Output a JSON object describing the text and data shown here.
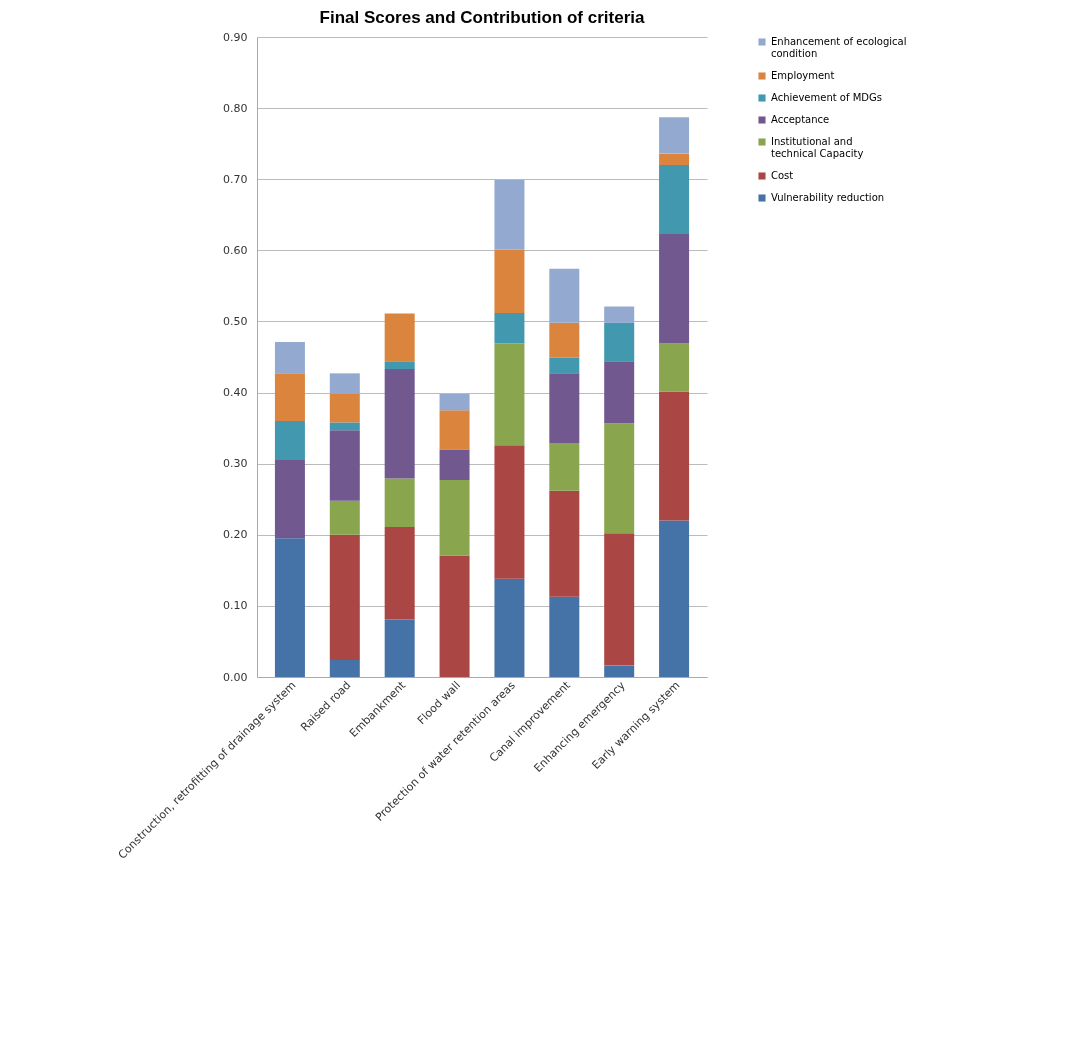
{
  "chart_data": {
    "type": "bar",
    "title": "Final Scores and Contribution of criteria",
    "stacked": true,
    "categories": [
      "Construction, retrofitting of drainage system",
      "Raised road",
      "Embankment",
      "Flood wall",
      "Protection of water retention areas",
      "Canal improvement",
      "Enhancing emergency",
      "Early warning system"
    ],
    "series": [
      {
        "name": "Vulnerability reduction",
        "color": "#4572a7",
        "values": [
          0.195,
          0.024,
          0.081,
          0,
          0.138,
          0.113,
          0.016,
          0.22
        ]
      },
      {
        "name": "Cost",
        "color": "#aa4643",
        "values": [
          0,
          0.176,
          0.13,
          0.171,
          0.188,
          0.149,
          0.186,
          0.181
        ]
      },
      {
        "name": "Institutional and technical Capacity",
        "color": "#89a54e",
        "values": [
          0,
          0.048,
          0.068,
          0.106,
          0.143,
          0.067,
          0.155,
          0.068
        ]
      },
      {
        "name": "Acceptance",
        "color": "#71588f",
        "values": [
          0.11,
          0.099,
          0.154,
          0.043,
          0,
          0.098,
          0.087,
          0.154
        ]
      },
      {
        "name": "Achievement of MDGs",
        "color": "#4198af",
        "values": [
          0.055,
          0.011,
          0.011,
          0,
          0.043,
          0.022,
          0.054,
          0.097
        ]
      },
      {
        "name": "Employment",
        "color": "#db843d",
        "values": [
          0.067,
          0.04,
          0.067,
          0.055,
          0.089,
          0.049,
          0,
          0.016
        ]
      },
      {
        "name": "Enhancement of ecological condition",
        "color": "#93a9cf",
        "values": [
          0.044,
          0.029,
          0,
          0.023,
          0.098,
          0.076,
          0.023,
          0.051
        ]
      }
    ],
    "ylim": [
      0,
      0.9
    ],
    "yticks": [
      {
        "value": 0,
        "label": "0.00"
      },
      {
        "value": 0.1,
        "label": "0.10"
      },
      {
        "value": 0.2,
        "label": "0.20"
      },
      {
        "value": 0.3,
        "label": "0.30"
      },
      {
        "value": 0.4,
        "label": "0.40"
      },
      {
        "value": 0.5,
        "label": "0.50"
      },
      {
        "value": 0.6,
        "label": "0.60"
      },
      {
        "value": 0.7,
        "label": "0.70"
      },
      {
        "value": 0.8,
        "label": "0.80"
      },
      {
        "value": 0.9,
        "label": "0.90"
      }
    ],
    "grid": "y",
    "legend": "right"
  }
}
